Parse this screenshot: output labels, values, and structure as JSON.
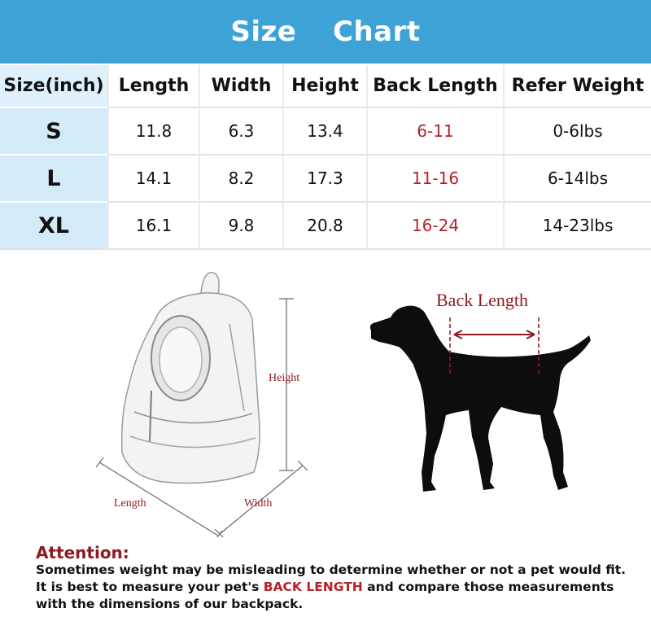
{
  "banner": {
    "title": "Size  Chart"
  },
  "table": {
    "headers": [
      "Size(inch)",
      "Length",
      "Width",
      "Height",
      "Back Length",
      "Refer Weight"
    ],
    "rows": [
      {
        "size": "S",
        "length": "11.8",
        "width": "6.3",
        "height": "13.4",
        "back_length": "6-11",
        "weight": "0-6lbs"
      },
      {
        "size": "L",
        "length": "14.1",
        "width": "8.2",
        "height": "17.3",
        "back_length": "11-16",
        "weight": "6-14lbs"
      },
      {
        "size": "XL",
        "length": "16.1",
        "width": "9.8",
        "height": "20.8",
        "back_length": "16-24",
        "weight": "14-23lbs"
      }
    ]
  },
  "diagram": {
    "backpack_labels": {
      "height": "Height",
      "length": "Length",
      "width": "Width"
    },
    "dog_label": "Back Length"
  },
  "attention": {
    "title": "Attention:",
    "line1": "Sometimes weight may be misleading to determine whether or not a pet would fit.",
    "line2_pre": "It is best to measure your pet's ",
    "line2_highlight": "BACK LENGTH",
    "line2_post": " and compare those measurements",
    "line3": "with the dimensions of our backpack."
  },
  "colors": {
    "banner": "#3da3d6",
    "size_cell": "#d3eaf8",
    "highlight": "#b3232b",
    "attention_title": "#8e1a1f"
  }
}
